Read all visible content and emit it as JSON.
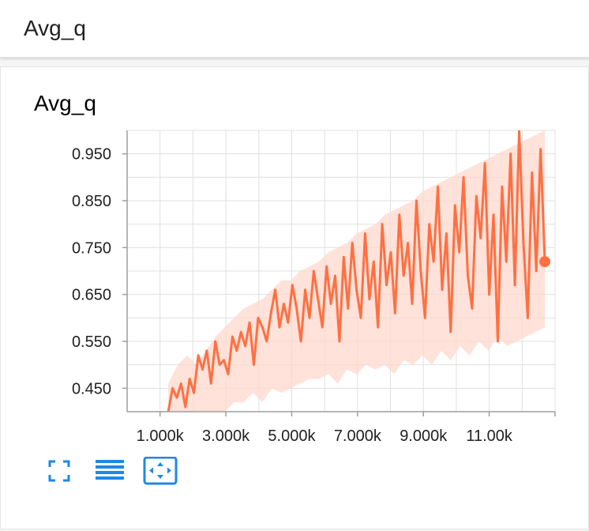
{
  "header": {
    "title": "Avg_q"
  },
  "card": {
    "title": "Avg_q",
    "actions": [
      {
        "name": "expand-button",
        "icon": "fullscreen-icon"
      },
      {
        "name": "toggle-log-scale-button",
        "icon": "list-lines-icon"
      },
      {
        "name": "fit-domain-button",
        "icon": "fit-to-data-icon"
      }
    ]
  },
  "colors": {
    "series": "#ff7043",
    "smoothed_bg": "#ffd8cc",
    "grid": "#e0e0e0",
    "axis": "#9e9e9e",
    "action": "#1e88e5"
  },
  "chart_data": {
    "type": "line",
    "title": "Avg_q",
    "xlabel": "",
    "ylabel": "",
    "xlim": [
      0,
      13000
    ],
    "ylim": [
      0.4,
      1.0
    ],
    "x_ticks": [
      1000,
      3000,
      5000,
      7000,
      9000,
      11000
    ],
    "x_tick_labels": [
      "1.000k",
      "3.000k",
      "5.000k",
      "7.000k",
      "9.000k",
      "11.00k"
    ],
    "y_ticks": [
      0.45,
      0.55,
      0.65,
      0.75,
      0.85,
      0.95
    ],
    "y_tick_labels": [
      "0.450",
      "0.550",
      "0.650",
      "0.750",
      "0.850",
      "0.950"
    ],
    "grid": true,
    "legend": "none",
    "series": [
      {
        "x": [
          1250,
          1380,
          1510,
          1640,
          1770,
          1900,
          2030,
          2160,
          2290,
          2420,
          2550,
          2680,
          2810,
          2940,
          3070,
          3200,
          3330,
          3460,
          3590,
          3720,
          3850,
          3980,
          4110,
          4240,
          4370,
          4500,
          4630,
          4760,
          4890,
          5020,
          5150,
          5280,
          5410,
          5540,
          5670,
          5800,
          5930,
          6060,
          6190,
          6320,
          6450,
          6580,
          6710,
          6840,
          6970,
          7100,
          7230,
          7360,
          7490,
          7620,
          7750,
          7880,
          8010,
          8140,
          8270,
          8400,
          8530,
          8660,
          8790,
          8920,
          9050,
          9180,
          9310,
          9440,
          9570,
          9700,
          9830,
          9960,
          10090,
          10220,
          10350,
          10480,
          10610,
          10740,
          10870,
          11000,
          11130,
          11260,
          11390,
          11520,
          11650,
          11780,
          11910,
          12040,
          12170,
          12300,
          12430,
          12560,
          12690
        ],
        "y": [
          0.4,
          0.45,
          0.43,
          0.46,
          0.41,
          0.47,
          0.44,
          0.52,
          0.49,
          0.53,
          0.46,
          0.55,
          0.5,
          0.51,
          0.48,
          0.56,
          0.53,
          0.57,
          0.54,
          0.59,
          0.5,
          0.6,
          0.58,
          0.55,
          0.61,
          0.66,
          0.58,
          0.63,
          0.59,
          0.67,
          0.62,
          0.55,
          0.66,
          0.6,
          0.7,
          0.64,
          0.58,
          0.71,
          0.63,
          0.69,
          0.55,
          0.73,
          0.62,
          0.76,
          0.66,
          0.6,
          0.78,
          0.64,
          0.72,
          0.58,
          0.8,
          0.67,
          0.74,
          0.61,
          0.82,
          0.69,
          0.76,
          0.63,
          0.85,
          0.7,
          0.6,
          0.8,
          0.72,
          0.88,
          0.66,
          0.78,
          0.57,
          0.84,
          0.74,
          0.9,
          0.69,
          0.62,
          0.86,
          0.77,
          0.93,
          0.65,
          0.82,
          0.55,
          0.88,
          0.72,
          0.95,
          0.67,
          1.0,
          0.76,
          0.6,
          0.91,
          0.7,
          0.96,
          0.72
        ]
      }
    ],
    "smoothed_band": {
      "upper": [
        0.46,
        0.5,
        0.52,
        0.5,
        0.53,
        0.56,
        0.58,
        0.6,
        0.62,
        0.63,
        0.64,
        0.66,
        0.68,
        0.68,
        0.7,
        0.71,
        0.72,
        0.74,
        0.75,
        0.76,
        0.78,
        0.79,
        0.8,
        0.82,
        0.83,
        0.84,
        0.85,
        0.87,
        0.88,
        0.89,
        0.9,
        0.91,
        0.92,
        0.93,
        0.94,
        0.95,
        0.96,
        0.97,
        0.98,
        0.99,
        1.0
      ],
      "lower": [
        0.4,
        0.4,
        0.4,
        0.4,
        0.4,
        0.4,
        0.4,
        0.42,
        0.42,
        0.44,
        0.42,
        0.45,
        0.44,
        0.45,
        0.46,
        0.47,
        0.47,
        0.48,
        0.46,
        0.49,
        0.48,
        0.5,
        0.49,
        0.5,
        0.48,
        0.51,
        0.5,
        0.52,
        0.5,
        0.53,
        0.51,
        0.54,
        0.52,
        0.55,
        0.53,
        0.56,
        0.54,
        0.55,
        0.56,
        0.57,
        0.58
      ]
    }
  }
}
